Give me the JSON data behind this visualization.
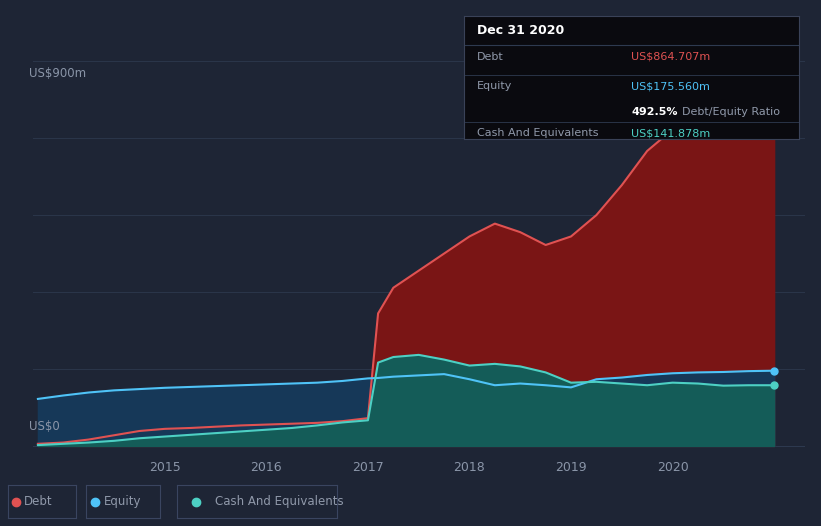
{
  "bg_color": "#1e2535",
  "plot_bg_color": "#1e2535",
  "grid_color": "#2e3a50",
  "title_y_label": "US$900m",
  "zero_label": "US$0",
  "x_ticks": [
    2015,
    2016,
    2017,
    2018,
    2019,
    2020
  ],
  "x_min": 2013.7,
  "x_max": 2021.3,
  "y_min": -15,
  "y_max": 920,
  "debt_color": "#e05252",
  "equity_color": "#4fc3f7",
  "cash_color": "#4dd0c4",
  "debt_fill_color": "#7a1515",
  "equity_fill_color": "#163858",
  "cash_fill_color": "#145c58",
  "tooltip_bg": "#0a0a0f",
  "tooltip_border": "#3a4258",
  "debt_label": "Debt",
  "equity_label": "Equity",
  "cash_label": "Cash And Equivalents",
  "tooltip_date": "Dec 31 2020",
  "tooltip_debt_val": "US$864.707m",
  "tooltip_equity_val": "US$175.560m",
  "tooltip_ratio": "492.5%",
  "tooltip_ratio_label": "Debt/Equity Ratio",
  "tooltip_cash_val": "US$141.878m",
  "years": [
    2013.75,
    2014.0,
    2014.25,
    2014.5,
    2014.75,
    2015.0,
    2015.25,
    2015.5,
    2015.75,
    2016.0,
    2016.25,
    2016.5,
    2016.75,
    2017.0,
    2017.1,
    2017.25,
    2017.5,
    2017.75,
    2018.0,
    2018.25,
    2018.5,
    2018.75,
    2019.0,
    2019.25,
    2019.5,
    2019.75,
    2020.0,
    2020.25,
    2020.5,
    2020.75,
    2021.0
  ],
  "debt": [
    5,
    8,
    15,
    25,
    35,
    40,
    42,
    45,
    48,
    50,
    52,
    54,
    58,
    65,
    310,
    370,
    410,
    450,
    490,
    520,
    500,
    470,
    490,
    540,
    610,
    690,
    740,
    790,
    840,
    862,
    865
  ],
  "equity": [
    110,
    118,
    125,
    130,
    133,
    136,
    138,
    140,
    142,
    144,
    146,
    148,
    152,
    158,
    159,
    162,
    165,
    168,
    156,
    142,
    146,
    142,
    137,
    156,
    160,
    166,
    170,
    172,
    173,
    175,
    176
  ],
  "cash": [
    2,
    5,
    8,
    12,
    18,
    22,
    26,
    30,
    34,
    38,
    42,
    48,
    55,
    60,
    195,
    208,
    213,
    202,
    188,
    192,
    186,
    172,
    148,
    150,
    146,
    142,
    148,
    146,
    141,
    142,
    142
  ],
  "grid_y_vals": [
    0,
    180,
    360,
    540,
    720,
    900
  ],
  "dot_x": 2021.0,
  "legend_items": [
    {
      "label": "Debt",
      "color": "#e05252"
    },
    {
      "label": "Equity",
      "color": "#4fc3f7"
    },
    {
      "label": "Cash And Equivalents",
      "color": "#4dd0c4"
    }
  ]
}
